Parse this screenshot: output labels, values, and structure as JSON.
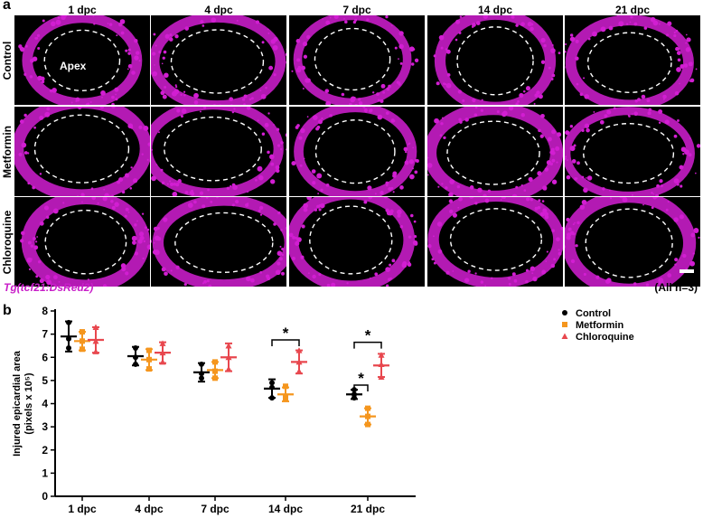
{
  "panel_a": {
    "letter": "a",
    "columns": [
      "1 dpc",
      "4 dpc",
      "7 dpc",
      "14 dpc",
      "21 dpc"
    ],
    "rows": [
      "Control",
      "Metformin",
      "Chloroquine"
    ],
    "apex_label": "Apex",
    "transgene_prefix": "Tg",
    "transgene_name": "tcf21:DsRed2",
    "sample_note": "(All n=3)",
    "stain_color": "#d21ed2"
  },
  "panel_b": {
    "letter": "b"
  },
  "chart_data": {
    "type": "scatter",
    "categories": [
      "1 dpc",
      "4 dpc",
      "7 dpc",
      "14 dpc",
      "21 dpc"
    ],
    "ylabel": "Injured epicardial area",
    "ylabel_unit": "(pixels x 10⁵)",
    "ylim": [
      0,
      8
    ],
    "yticks": [
      0,
      1,
      2,
      3,
      4,
      5,
      6,
      7,
      8
    ],
    "legend_position": "top-right",
    "series": [
      {
        "name": "Control",
        "color": "#000000",
        "marker": "circle",
        "mean": [
          6.9,
          6.05,
          5.35,
          4.65,
          4.4
        ],
        "sd": [
          0.65,
          0.4,
          0.4,
          0.4,
          0.2
        ],
        "points": [
          [
            7.5,
            6.8,
            6.4
          ],
          [
            6.4,
            6.0,
            5.7
          ],
          [
            5.7,
            5.3,
            5.1
          ],
          [
            4.9,
            4.7,
            4.25
          ],
          [
            4.6,
            4.4,
            4.25
          ]
        ]
      },
      {
        "name": "Metformin",
        "color": "#f5961e",
        "marker": "square",
        "mean": [
          6.7,
          5.9,
          5.45,
          4.4,
          3.45
        ],
        "sd": [
          0.4,
          0.45,
          0.35,
          0.3,
          0.35
        ],
        "points": [
          [
            7.1,
            6.7,
            6.35
          ],
          [
            6.3,
            5.9,
            5.5
          ],
          [
            5.8,
            5.4,
            5.1
          ],
          [
            4.75,
            4.3,
            4.2
          ],
          [
            3.8,
            3.45,
            3.1
          ]
        ]
      },
      {
        "name": "Chloroquine",
        "color": "#e8474e",
        "marker": "triangle",
        "mean": [
          6.75,
          6.2,
          6.0,
          5.8,
          5.65
        ],
        "sd": [
          0.55,
          0.45,
          0.6,
          0.5,
          0.5
        ],
        "points": [
          [
            7.3,
            6.7,
            6.25
          ],
          [
            6.6,
            6.2,
            5.8
          ],
          [
            6.5,
            6.0,
            5.5
          ],
          [
            6.3,
            5.8,
            5.4
          ],
          [
            6.1,
            5.7,
            5.15
          ]
        ]
      }
    ],
    "significance": [
      {
        "label": "*",
        "category": "14 dpc",
        "from": "Control",
        "to": "Chloroquine",
        "y": 6.75
      },
      {
        "label": "*",
        "category": "21 dpc",
        "from": "Control",
        "to": "Chloroquine",
        "y": 6.65
      },
      {
        "label": "*",
        "category": "21 dpc",
        "from": "Control",
        "to": "Metformin",
        "y": 4.8
      }
    ]
  }
}
